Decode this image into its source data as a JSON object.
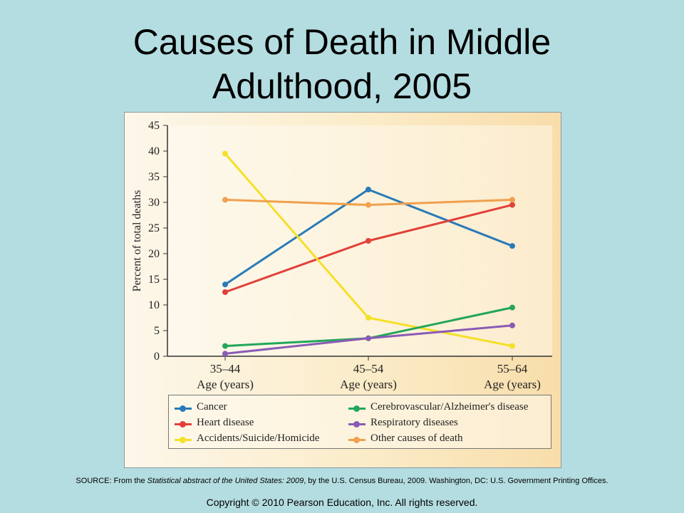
{
  "slide": {
    "title_line1": "Causes of Death in Middle",
    "title_line2": "Adulthood, 2005",
    "source_prefix": "SOURCE: From the ",
    "source_title": "Statistical abstract of the United States: 2009",
    "source_suffix": ", by the U.S. Census Bureau, 2009. Washington, DC: U.S. Government Printing Offices.",
    "copyright": "Copyright © 2010 Pearson Education, Inc. All rights reserved."
  },
  "chart_data": {
    "type": "line",
    "title": "",
    "ylabel": "Percent of total deaths",
    "ylim": [
      0,
      45
    ],
    "yticks": [
      0,
      5,
      10,
      15,
      20,
      25,
      30,
      35,
      40,
      45
    ],
    "categories": [
      "35–44",
      "45–54",
      "55–64"
    ],
    "category_sublabel": "Age (years)",
    "grid": false,
    "legend_position": "bottom",
    "series": [
      {
        "name": "Cancer",
        "color": "#2a7ab8",
        "values": [
          14,
          32.5,
          21.5
        ]
      },
      {
        "name": "Heart disease",
        "color": "#e2403a",
        "values": [
          12.5,
          22.5,
          29.5
        ]
      },
      {
        "name": "Accidents/Suicide/Homicide",
        "color": "#f5e027",
        "values": [
          39.5,
          7.5,
          2
        ]
      },
      {
        "name": "Cerebrovascular/Alzheimer's disease",
        "color": "#22a65a",
        "values": [
          2,
          3.5,
          9.5
        ]
      },
      {
        "name": "Respiratory diseases",
        "color": "#8a5bb5",
        "values": [
          0.5,
          3.5,
          6
        ]
      },
      {
        "name": "Other causes of death",
        "color": "#f0a04e",
        "values": [
          30.5,
          29.5,
          30.5
        ]
      }
    ]
  }
}
